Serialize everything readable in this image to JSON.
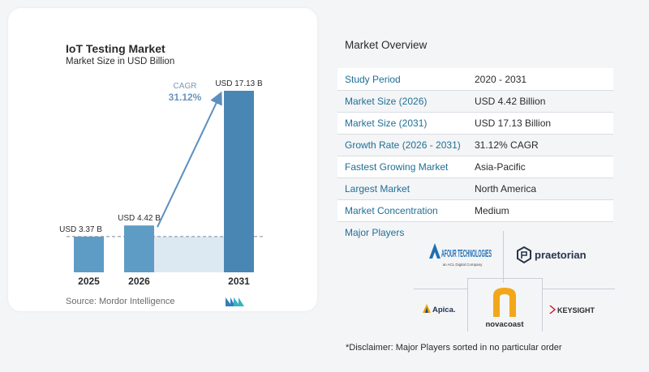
{
  "chart": {
    "title": "IoT Testing Market",
    "subtitle": "Market Size in USD Billion",
    "source": "Source:  Mordor Intelligence",
    "cagr_label": "CAGR",
    "cagr_value": "31.12%"
  },
  "chart_data": {
    "type": "bar",
    "categories": [
      "2025",
      "2026",
      "2031"
    ],
    "values": [
      3.37,
      4.42,
      17.13
    ],
    "data_labels": [
      "USD 3.37 B",
      "USD 4.42 B",
      "USD 17.13 B"
    ],
    "title": "IoT Testing Market",
    "subtitle": "Market Size in USD Billion",
    "xlabel": "",
    "ylabel": "",
    "ylim": [
      0,
      17.13
    ],
    "grid": false,
    "annotation": "CAGR 31.12%",
    "colors": {
      "bar_light": "#5e9cc6",
      "bar_dark": "#4a86b3",
      "band": "#dde9f2",
      "arrow": "#5c8fbf"
    }
  },
  "overview": {
    "title": "Market Overview",
    "rows": [
      {
        "label": "Study Period",
        "value": "2020 - 2031"
      },
      {
        "label": "Market Size (2026)",
        "value": "USD 4.42 Billion"
      },
      {
        "label": "Market Size (2031)",
        "value": "USD 17.13 Billion"
      },
      {
        "label": "Growth Rate (2026 - 2031)",
        "value": "31.12% CAGR"
      },
      {
        "label": "Fastest Growing Market",
        "value": "Asia-Pacific"
      },
      {
        "label": "Largest Market",
        "value": "North America"
      },
      {
        "label": "Market Concentration",
        "value": "Medium"
      }
    ],
    "players_label": "Major Players",
    "players": [
      "AFOUR TECHNOLOGIES",
      "praetorian",
      "Apica.",
      "novacoast",
      "KEYSIGHT"
    ],
    "disclaimer": "*Disclaimer: Major Players sorted in no particular order"
  }
}
